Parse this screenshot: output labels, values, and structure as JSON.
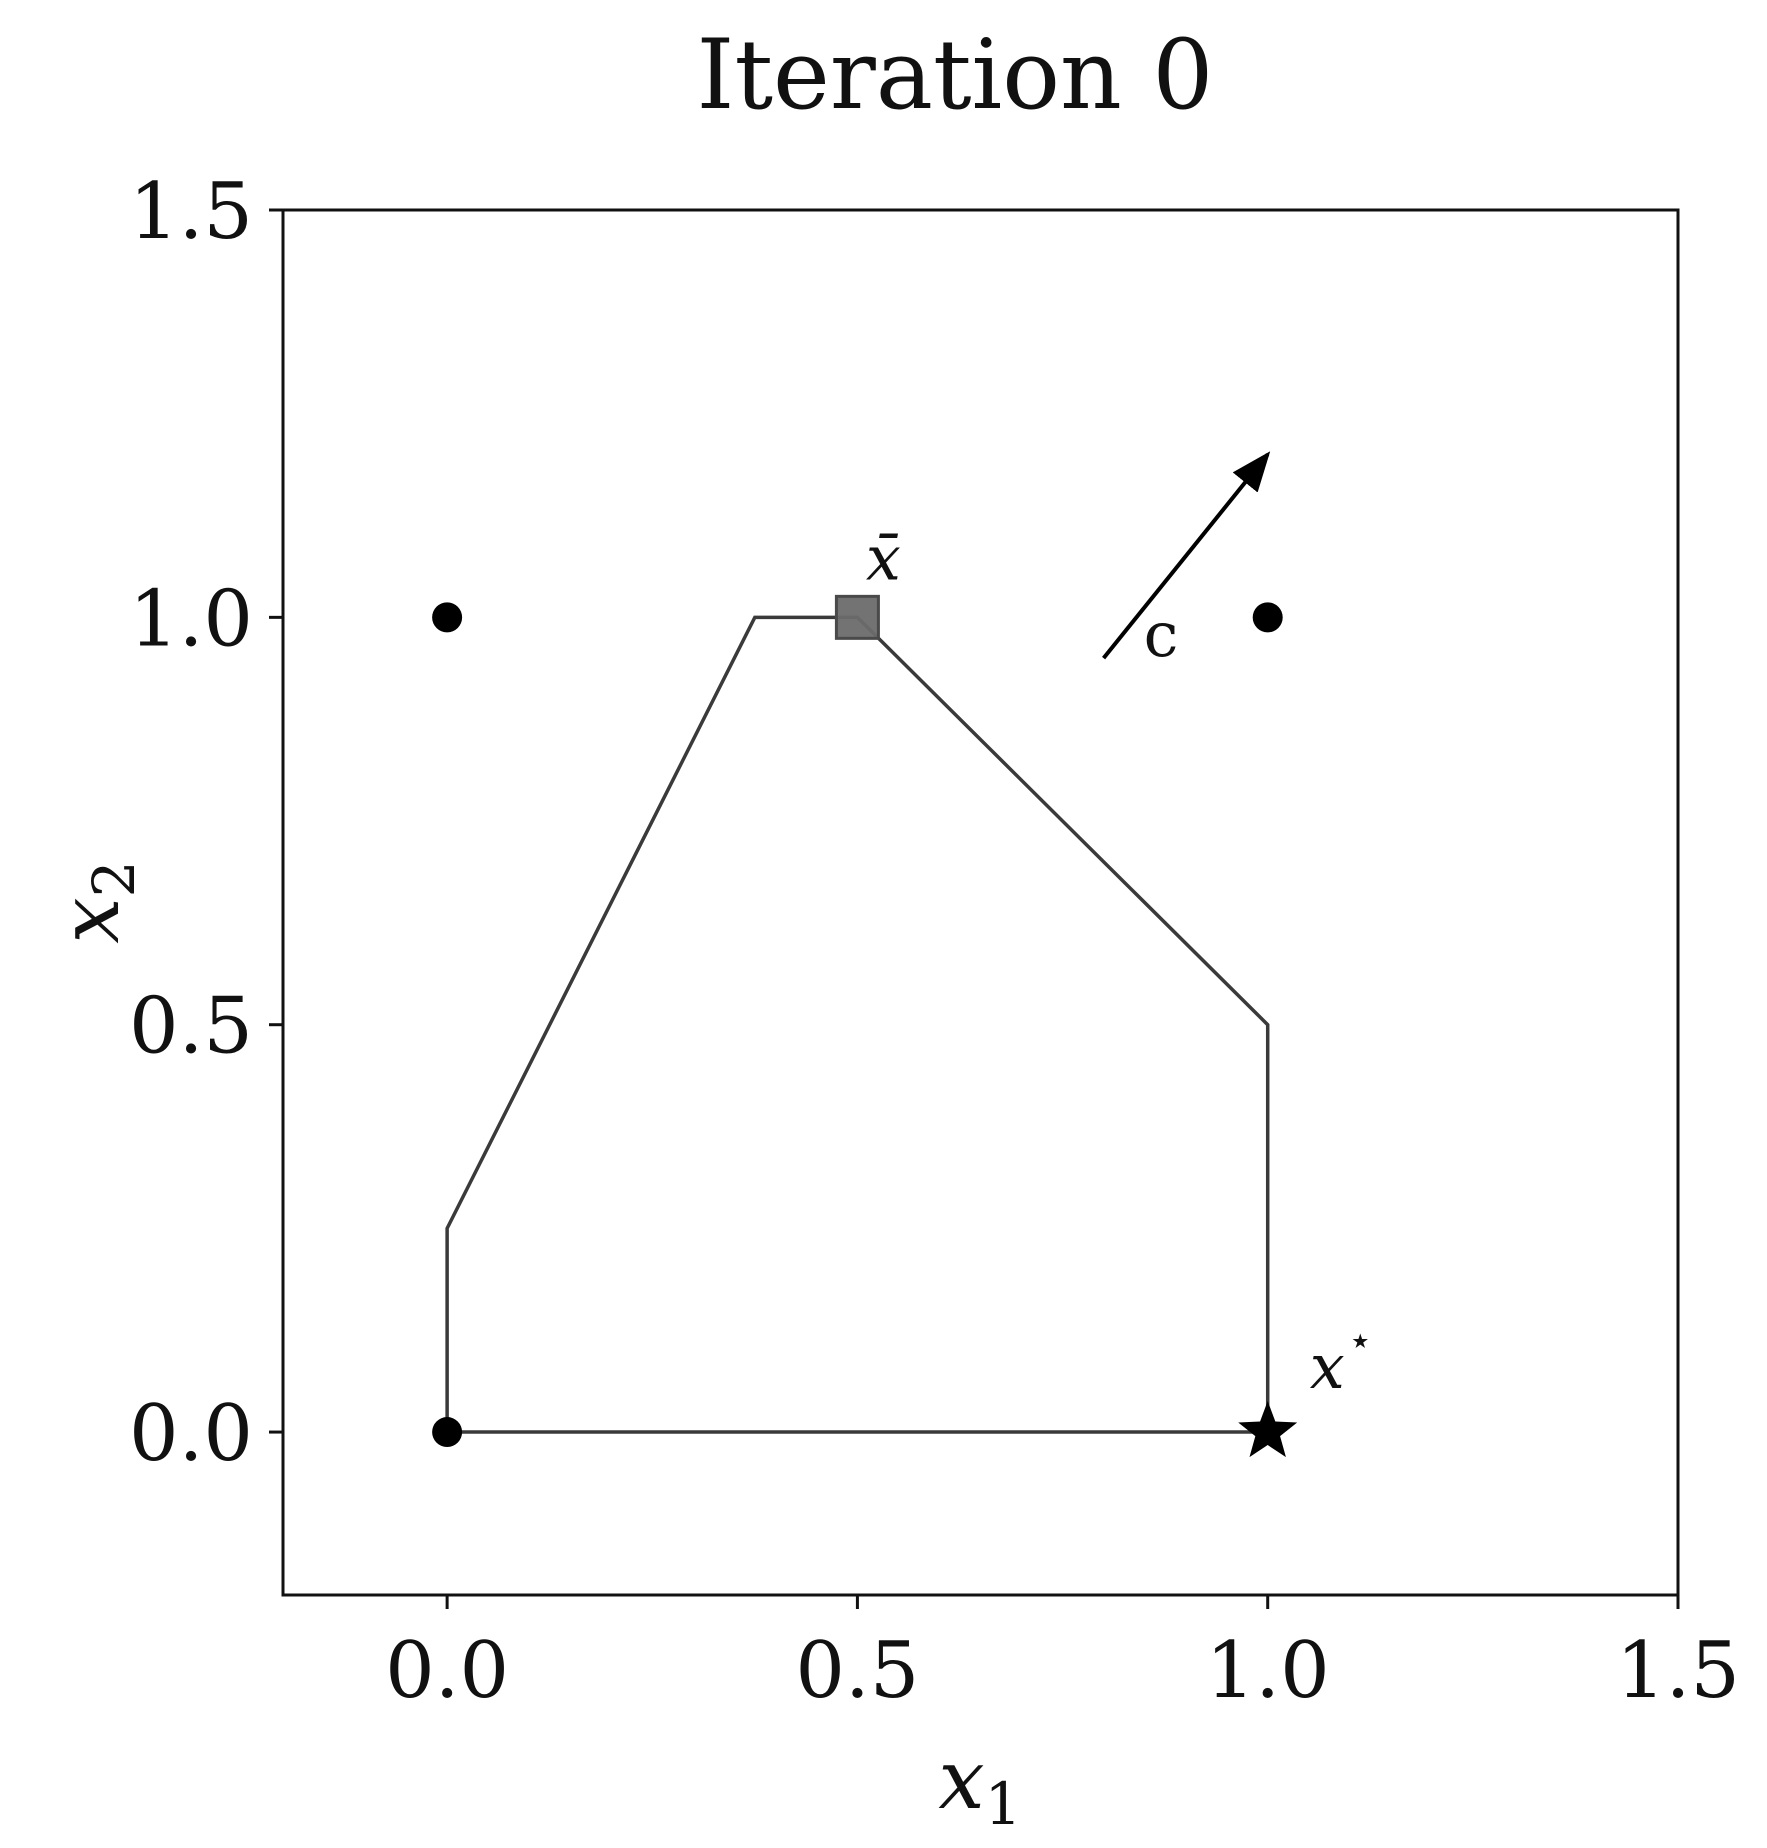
{
  "chart_data": {
    "type": "scatter",
    "title": "Iteration 0",
    "xlabel": {
      "base": "x",
      "sub": "1"
    },
    "ylabel": {
      "base": "x",
      "sub": "2"
    },
    "xlim": [
      -0.2,
      1.5
    ],
    "ylim": [
      -0.2,
      1.5
    ],
    "xticks": [
      {
        "value": 0.0,
        "label": "0.0"
      },
      {
        "value": 0.5,
        "label": "0.5"
      },
      {
        "value": 1.0,
        "label": "1.0"
      },
      {
        "value": 1.5,
        "label": "1.5"
      }
    ],
    "yticks": [
      {
        "value": 0.0,
        "label": "0.0"
      },
      {
        "value": 0.5,
        "label": "0.5"
      },
      {
        "value": 1.0,
        "label": "1.0"
      },
      {
        "value": 1.5,
        "label": "1.5"
      }
    ],
    "grid": false,
    "polygon": [
      [
        0.0,
        0.0
      ],
      [
        1.0,
        0.0
      ],
      [
        1.0,
        0.5
      ],
      [
        0.5,
        1.0
      ],
      [
        0.375,
        1.0
      ],
      [
        0.0,
        0.25
      ],
      [
        0.0,
        0.0
      ]
    ],
    "points": [
      [
        0.0,
        1.0
      ],
      [
        1.0,
        1.0
      ],
      [
        0.0,
        0.0
      ]
    ],
    "xbar": {
      "x": 0.5,
      "y": 1.0,
      "label": "x̄"
    },
    "xstar": {
      "x": 1.0,
      "y": 0.0,
      "label": "x",
      "sup": "⋆"
    },
    "cost_vector": {
      "from": [
        0.8,
        0.95
      ],
      "to": [
        1.0,
        1.2
      ],
      "label": "c"
    },
    "colors": {
      "polygon": "#3a3a3a",
      "points": "#000000",
      "xbar_fill": "#6b6b6b",
      "axes": "#111111"
    }
  }
}
